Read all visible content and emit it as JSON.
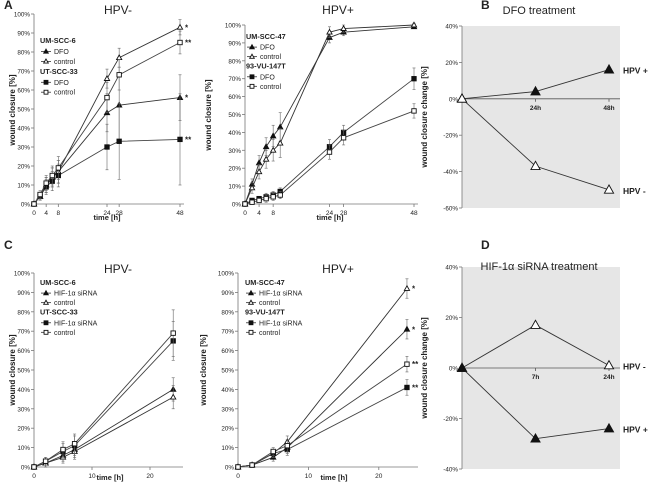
{
  "chart_data": [
    {
      "id": "A1",
      "panel_letter": "A",
      "type": "line",
      "title": "HPV-",
      "xlabel": "time [h]",
      "ylabel": "wound closure [%]",
      "xlim": [
        0,
        48
      ],
      "ylim": [
        0,
        100
      ],
      "xticks": [
        0,
        4,
        8,
        24,
        28,
        48
      ],
      "yticks": [
        0,
        10,
        20,
        30,
        40,
        50,
        60,
        70,
        80,
        90,
        100
      ],
      "ytick_suffix": "%",
      "groups": [
        {
          "label": "UM-SCC-6",
          "entries": [
            0,
            1
          ]
        },
        {
          "label": "UT-SCC-33",
          "entries": [
            2,
            3
          ]
        }
      ],
      "series": [
        {
          "name": "DFO",
          "marker": "tri-filled",
          "x": [
            0,
            2,
            4,
            6,
            8,
            24,
            28,
            48
          ],
          "values": [
            0,
            4,
            10,
            14,
            17,
            48,
            52,
            56
          ],
          "err": [
            0,
            2,
            4,
            5,
            6,
            10,
            20,
            12
          ],
          "sig": "*"
        },
        {
          "name": "control",
          "marker": "tri-open",
          "x": [
            0,
            2,
            4,
            6,
            8,
            24,
            28,
            48
          ],
          "values": [
            0,
            4,
            10,
            14,
            17,
            66,
            77,
            93
          ],
          "err": [
            0,
            2,
            4,
            5,
            6,
            5,
            5,
            4
          ],
          "sig": "*"
        },
        {
          "name": "DFO",
          "marker": "sq-filled",
          "x": [
            0,
            2,
            4,
            6,
            8,
            24,
            28,
            48
          ],
          "values": [
            0,
            4,
            9,
            12,
            15,
            30,
            33,
            34
          ],
          "err": [
            0,
            2,
            4,
            5,
            6,
            12,
            20,
            24
          ],
          "sig": "**"
        },
        {
          "name": "control",
          "marker": "sq-open",
          "x": [
            0,
            2,
            4,
            6,
            8,
            24,
            28,
            48
          ],
          "values": [
            0,
            5,
            11,
            15,
            19,
            56,
            68,
            85
          ],
          "err": [
            0,
            2,
            4,
            5,
            6,
            8,
            8,
            6
          ],
          "sig": "**"
        }
      ]
    },
    {
      "id": "A2",
      "panel_letter": "",
      "type": "line",
      "title": "HPV+",
      "xlabel": "time [h]",
      "ylabel": "wound closure [%]",
      "xlim": [
        0,
        48
      ],
      "ylim": [
        0,
        100
      ],
      "xticks": [
        0,
        4,
        8,
        24,
        28,
        48
      ],
      "yticks": [
        0,
        10,
        20,
        30,
        40,
        50,
        60,
        70,
        80,
        90,
        100
      ],
      "ytick_suffix": "%",
      "groups": [
        {
          "label": "UM-SCC-47",
          "entries": [
            0,
            1
          ]
        },
        {
          "label": "93-VU-147T",
          "entries": [
            2,
            3
          ]
        }
      ],
      "series": [
        {
          "name": "DFO",
          "marker": "tri-filled",
          "x": [
            0,
            2,
            4,
            6,
            8,
            10,
            24,
            28,
            48
          ],
          "values": [
            0,
            11,
            23,
            32,
            38,
            43,
            93,
            96,
            99
          ],
          "err": [
            0,
            3,
            4,
            5,
            6,
            8,
            3,
            2,
            1
          ],
          "sig": ""
        },
        {
          "name": "control",
          "marker": "tri-open",
          "x": [
            0,
            2,
            4,
            6,
            8,
            10,
            24,
            28,
            48
          ],
          "values": [
            0,
            9,
            18,
            25,
            30,
            34,
            96,
            98,
            100
          ],
          "err": [
            0,
            3,
            4,
            5,
            6,
            8,
            3,
            2,
            1
          ],
          "sig": ""
        },
        {
          "name": "DFO",
          "marker": "sq-filled",
          "x": [
            0,
            2,
            4,
            6,
            8,
            10,
            24,
            28,
            48
          ],
          "values": [
            0,
            2,
            3,
            4,
            5,
            7,
            32,
            40,
            70
          ],
          "err": [
            0,
            1,
            1,
            2,
            2,
            2,
            4,
            4,
            6
          ],
          "sig": ""
        },
        {
          "name": "control",
          "marker": "sq-open",
          "x": [
            0,
            2,
            4,
            6,
            8,
            10,
            24,
            28,
            48
          ],
          "values": [
            0,
            1,
            2,
            3,
            4,
            5,
            29,
            37,
            52
          ],
          "err": [
            0,
            1,
            1,
            2,
            2,
            2,
            4,
            4,
            4
          ],
          "sig": ""
        }
      ]
    },
    {
      "id": "B",
      "panel_letter": "B",
      "type": "line",
      "title": "DFO treatment",
      "xlabel": "",
      "ylabel": "wound closure change [%]",
      "ylim": [
        -60,
        40
      ],
      "yticks": [
        -60,
        -40,
        -20,
        0,
        20,
        40
      ],
      "ytick_suffix": "%",
      "categories": [
        "",
        "24h",
        "48h"
      ],
      "shaded": true,
      "series": [
        {
          "name": "HPV +",
          "marker": "tri-filled",
          "values": [
            0,
            4,
            16
          ]
        },
        {
          "name": "HPV -",
          "marker": "tri-open",
          "values": [
            0,
            -37,
            -50
          ]
        }
      ]
    },
    {
      "id": "C1",
      "panel_letter": "C",
      "type": "line",
      "title": "HPV-",
      "xlabel": "time [h]",
      "ylabel": "wound closure [%]",
      "xlim": [
        0,
        25
      ],
      "ylim": [
        0,
        100
      ],
      "xticks": [
        0,
        10,
        20
      ],
      "yticks": [
        0,
        10,
        20,
        30,
        40,
        50,
        60,
        70,
        80,
        90,
        100
      ],
      "ytick_suffix": "%",
      "groups": [
        {
          "label": "UM-SCC-6",
          "entries": [
            0,
            1
          ]
        },
        {
          "label": "UT-SCC-33",
          "entries": [
            2,
            3
          ]
        }
      ],
      "series": [
        {
          "name": "HIF-1α siRNA",
          "marker": "tri-filled",
          "x": [
            0,
            2,
            5,
            7,
            24
          ],
          "values": [
            0,
            2,
            6,
            9,
            40
          ],
          "err": [
            0,
            2,
            3,
            4,
            6
          ],
          "sig": ""
        },
        {
          "name": "control",
          "marker": "tri-open",
          "x": [
            0,
            2,
            5,
            7,
            24
          ],
          "values": [
            0,
            2,
            5,
            8,
            36
          ],
          "err": [
            0,
            2,
            3,
            4,
            6
          ],
          "sig": ""
        },
        {
          "name": "HIF-1α siRNA",
          "marker": "sq-filled",
          "x": [
            0,
            2,
            5,
            7,
            24
          ],
          "values": [
            0,
            3,
            8,
            11,
            65
          ],
          "err": [
            0,
            2,
            4,
            5,
            10
          ],
          "sig": ""
        },
        {
          "name": "control",
          "marker": "sq-open",
          "x": [
            0,
            2,
            5,
            7,
            24
          ],
          "values": [
            0,
            3,
            9,
            12,
            69
          ],
          "err": [
            0,
            2,
            4,
            5,
            12
          ],
          "sig": ""
        }
      ]
    },
    {
      "id": "C2",
      "panel_letter": "",
      "type": "line",
      "title": "HPV+",
      "xlabel": "time [h]",
      "ylabel": "wound closure [%]",
      "xlim": [
        0,
        25
      ],
      "ylim": [
        0,
        100
      ],
      "xticks": [
        0,
        10,
        20
      ],
      "yticks": [
        0,
        10,
        20,
        30,
        40,
        50,
        60,
        70,
        80,
        90,
        100
      ],
      "ytick_suffix": "%",
      "groups": [
        {
          "label": "UM-SCC-47",
          "entries": [
            0,
            1
          ]
        },
        {
          "label": "93-VU-147T",
          "entries": [
            2,
            3
          ]
        }
      ],
      "series": [
        {
          "name": "HIF-1α siRNA",
          "marker": "tri-filled",
          "x": [
            0,
            2,
            5,
            7,
            24
          ],
          "values": [
            0,
            1,
            5,
            10,
            71
          ],
          "err": [
            0,
            1,
            2,
            3,
            5
          ],
          "sig": "*"
        },
        {
          "name": "control",
          "marker": "tri-open",
          "x": [
            0,
            2,
            5,
            7,
            24
          ],
          "values": [
            0,
            1,
            7,
            13,
            92
          ],
          "err": [
            0,
            1,
            2,
            3,
            5
          ],
          "sig": "*"
        },
        {
          "name": "HIF-1α siRNA",
          "marker": "sq-filled",
          "x": [
            0,
            2,
            5,
            7,
            24
          ],
          "values": [
            0,
            1,
            7,
            9,
            41
          ],
          "err": [
            0,
            1,
            2,
            3,
            4
          ],
          "sig": "**"
        },
        {
          "name": "control",
          "marker": "sq-open",
          "x": [
            0,
            2,
            5,
            7,
            24
          ],
          "values": [
            0,
            1,
            8,
            11,
            53
          ],
          "err": [
            0,
            1,
            2,
            3,
            4
          ],
          "sig": "**"
        }
      ]
    },
    {
      "id": "D",
      "panel_letter": "D",
      "type": "line",
      "title": "HIF-1α siRNA treatment",
      "xlabel": "",
      "ylabel": "wound closure change [%]",
      "ylim": [
        -40,
        40
      ],
      "yticks": [
        -40,
        -20,
        0,
        20,
        40
      ],
      "ytick_suffix": "%",
      "categories": [
        "",
        "7h",
        "24h"
      ],
      "shaded": true,
      "series": [
        {
          "name": "HPV -",
          "marker": "tri-open",
          "values": [
            0,
            17,
            1
          ]
        },
        {
          "name": "HPV +",
          "marker": "tri-filled",
          "values": [
            0,
            -28,
            -24
          ]
        }
      ]
    }
  ]
}
